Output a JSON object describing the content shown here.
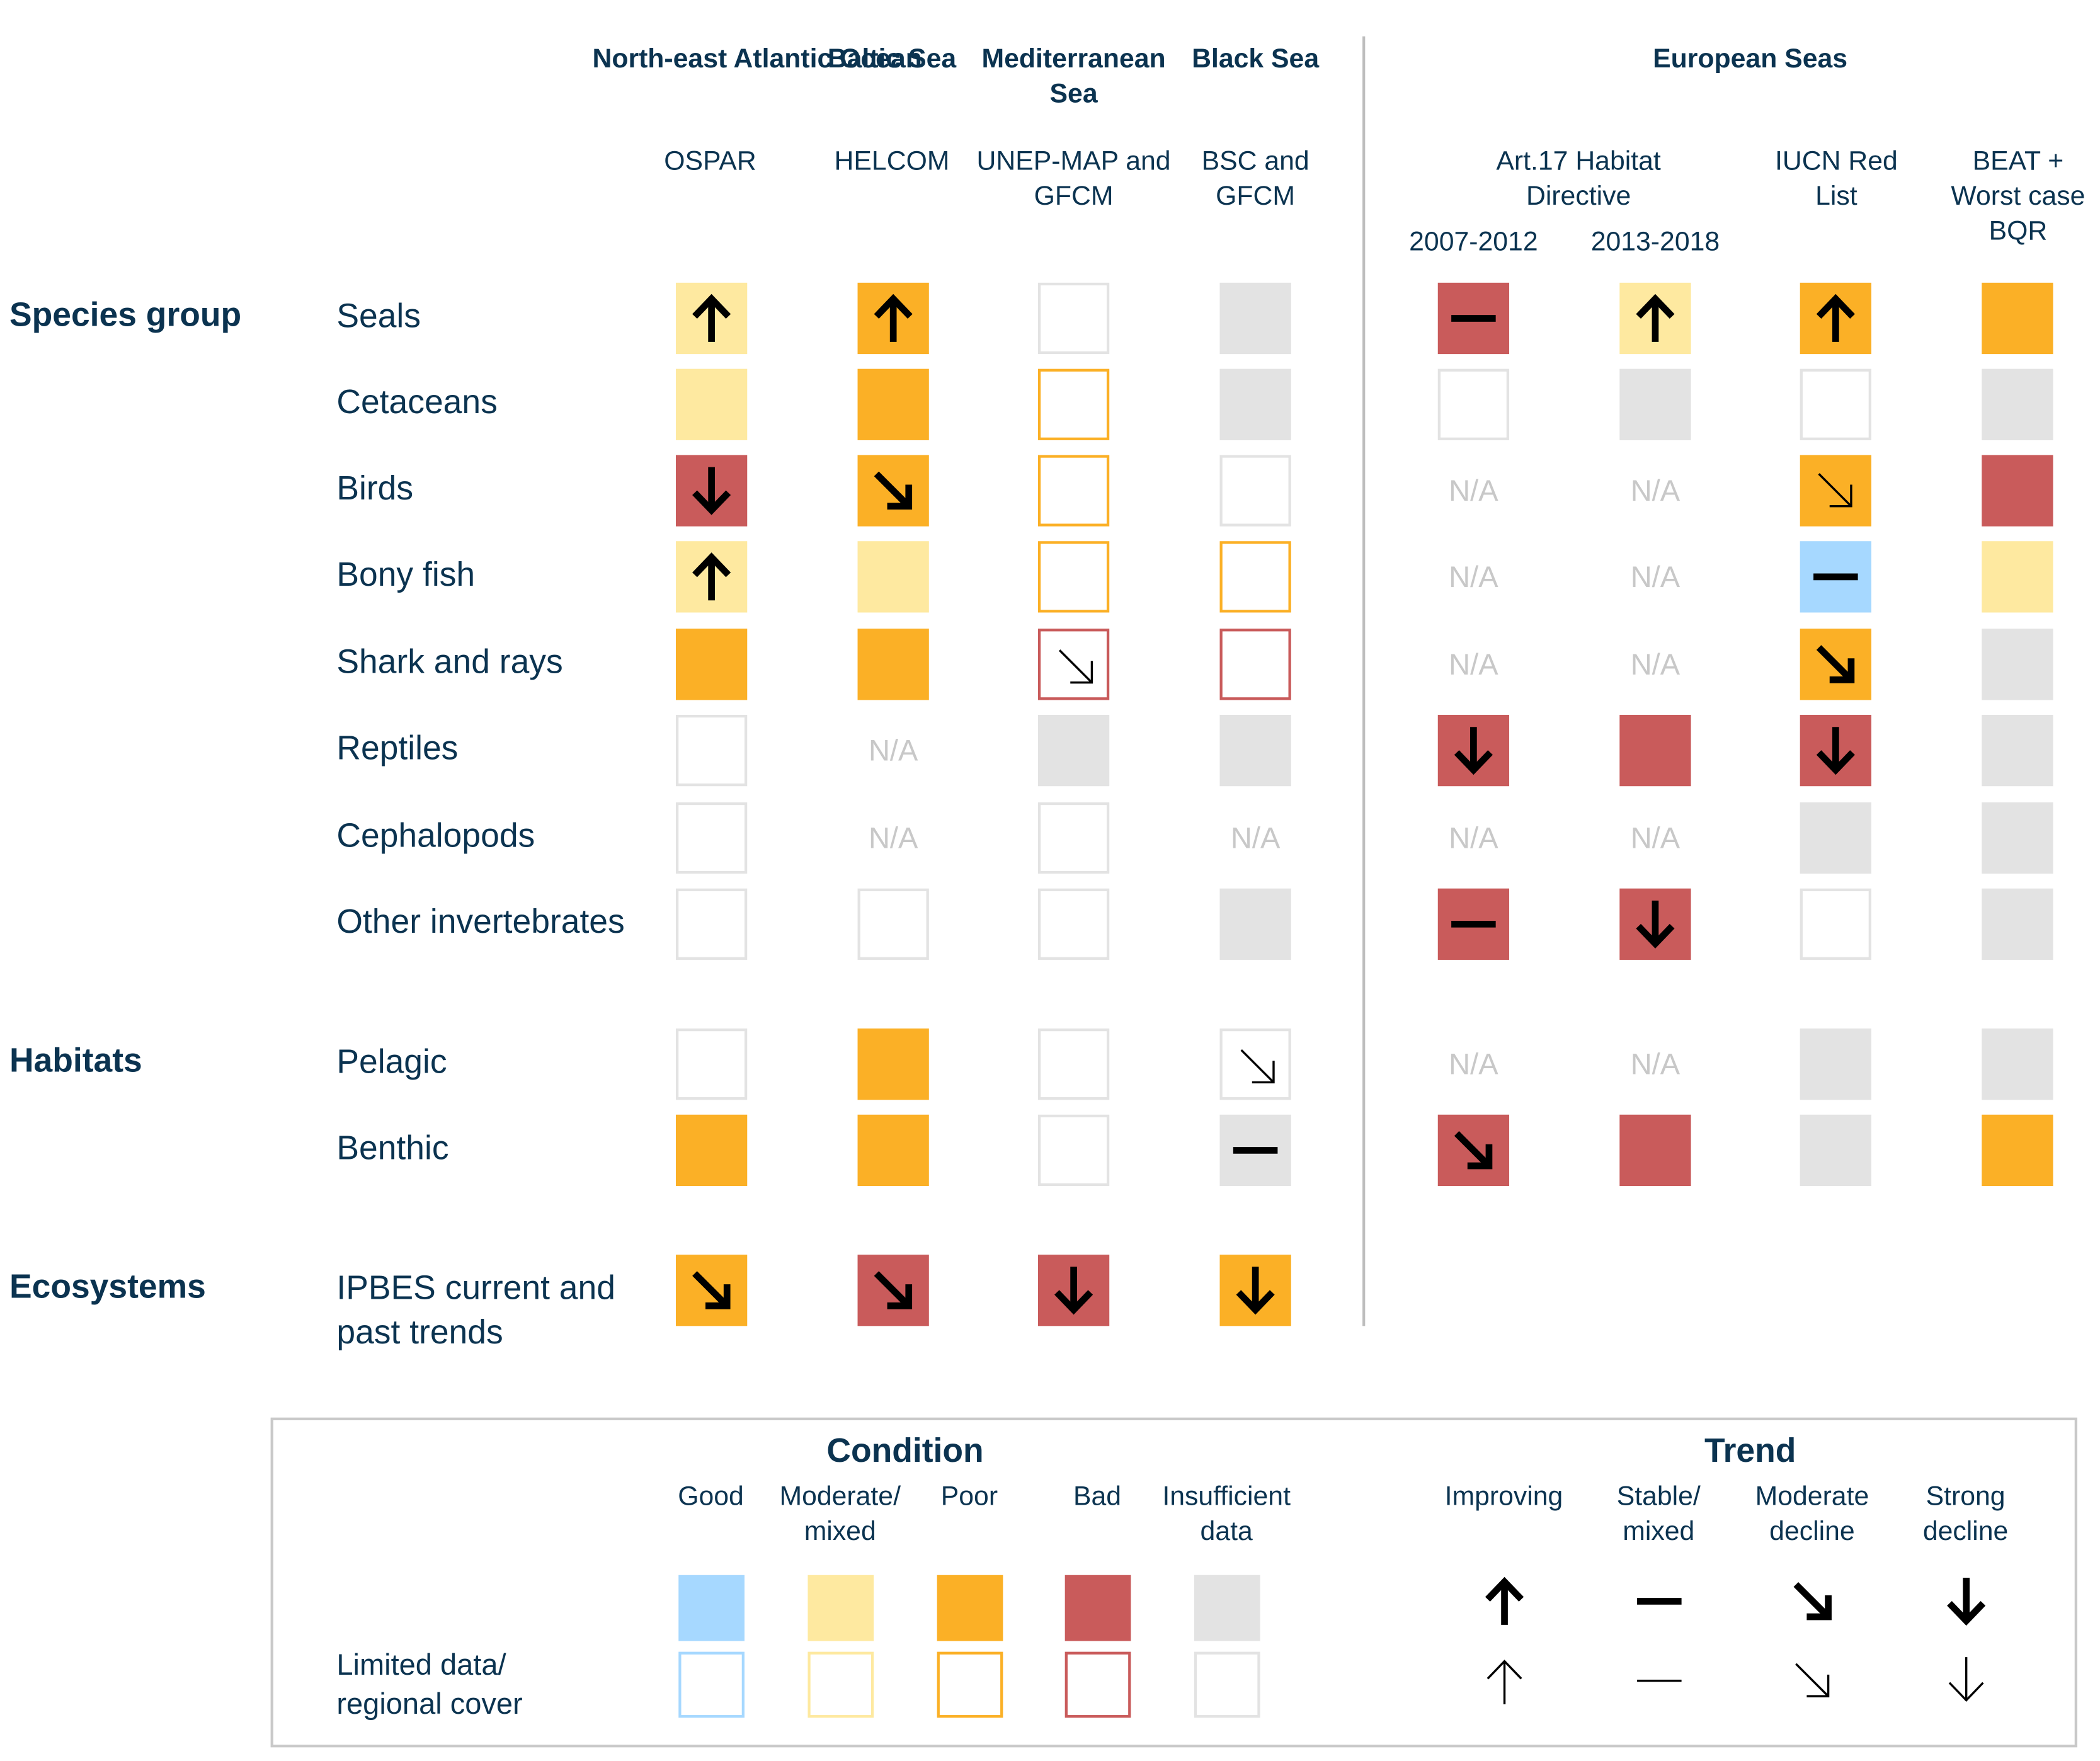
{
  "colors": {
    "good": "#a6d8ff",
    "moderate": "#fee9a0",
    "poor": "#fbb026",
    "bad": "#c95b5b",
    "insufficient": "#e3e3e3",
    "text": "#0b3350"
  },
  "regions": [
    {
      "name": "North-east Atlantic Ocean",
      "org": "OSPAR"
    },
    {
      "name": "Baltic Sea",
      "org": "HELCOM"
    },
    {
      "name": "Mediterranean Sea",
      "org": "UNEP-MAP and GFCM"
    },
    {
      "name": "Black Sea",
      "org": "BSC and GFCM"
    }
  ],
  "european_seas": {
    "title": "European Seas",
    "art17_label": "Art.17 Habitat Directive",
    "periods": [
      "2007-2012",
      "2013-2018"
    ],
    "iucn_label": "IUCN Red List",
    "beat_label": "BEAT + Worst case BQR"
  },
  "groups": [
    {
      "label": "Species group",
      "rows": [
        {
          "label": "Seals",
          "cells": [
            {
              "c": "moderate",
              "t": "up",
              "w": "bold"
            },
            {
              "c": "poor",
              "t": "up",
              "w": "bold"
            },
            {
              "c": "insufficient",
              "lim": true
            },
            {
              "c": "insufficient"
            },
            {
              "c": "bad",
              "t": "stable",
              "w": "bold"
            },
            {
              "c": "moderate",
              "t": "up",
              "w": "bold"
            },
            {
              "c": "poor",
              "t": "up",
              "w": "bold"
            },
            {
              "c": "poor"
            }
          ]
        },
        {
          "label": "Cetaceans",
          "cells": [
            {
              "c": "moderate"
            },
            {
              "c": "poor"
            },
            {
              "c": "poor",
              "lim": true
            },
            {
              "c": "insufficient"
            },
            {
              "c": "insufficient",
              "lim": true
            },
            {
              "c": "insufficient"
            },
            {
              "c": "insufficient",
              "lim": true
            },
            {
              "c": "insufficient"
            }
          ]
        },
        {
          "label": "Birds",
          "cells": [
            {
              "c": "bad",
              "t": "down",
              "w": "bold"
            },
            {
              "c": "poor",
              "t": "moddown",
              "w": "bold"
            },
            {
              "c": "poor",
              "lim": true
            },
            {
              "c": "insufficient",
              "lim": true
            },
            {
              "na": "N/A"
            },
            {
              "na": "N/A"
            },
            {
              "c": "poor",
              "t": "moddown",
              "w": "thin"
            },
            {
              "c": "bad"
            }
          ]
        },
        {
          "label": "Bony fish",
          "cells": [
            {
              "c": "moderate",
              "t": "up",
              "w": "bold"
            },
            {
              "c": "moderate"
            },
            {
              "c": "poor",
              "lim": true
            },
            {
              "c": "poor",
              "lim": true
            },
            {
              "na": "N/A"
            },
            {
              "na": "N/A"
            },
            {
              "c": "good",
              "t": "stable",
              "w": "bold"
            },
            {
              "c": "moderate"
            }
          ]
        },
        {
          "label": "Shark and rays",
          "cells": [
            {
              "c": "poor"
            },
            {
              "c": "poor"
            },
            {
              "c": "bad",
              "lim": true,
              "t": "moddown",
              "w": "thin"
            },
            {
              "c": "bad",
              "lim": true
            },
            {
              "na": "N/A"
            },
            {
              "na": "N/A"
            },
            {
              "c": "poor",
              "t": "moddown",
              "w": "bold"
            },
            {
              "c": "insufficient"
            }
          ]
        },
        {
          "label": "Reptiles",
          "cells": [
            {
              "c": "insufficient",
              "lim": true
            },
            {
              "na": "N/A"
            },
            {
              "c": "insufficient"
            },
            {
              "c": "insufficient"
            },
            {
              "c": "bad",
              "t": "down",
              "w": "bold"
            },
            {
              "c": "bad"
            },
            {
              "c": "bad",
              "t": "down",
              "w": "bold"
            },
            {
              "c": "insufficient"
            }
          ]
        },
        {
          "label": "Cephalopods",
          "cells": [
            {
              "c": "insufficient",
              "lim": true
            },
            {
              "na": "N/A"
            },
            {
              "c": "insufficient",
              "lim": true
            },
            {
              "na": "N/A"
            },
            {
              "na": "N/A"
            },
            {
              "na": "N/A"
            },
            {
              "c": "insufficient"
            },
            {
              "c": "insufficient"
            }
          ]
        },
        {
          "label": "Other invertebrates",
          "cells": [
            {
              "c": "insufficient",
              "lim": true
            },
            {
              "c": "insufficient",
              "lim": true
            },
            {
              "c": "insufficient",
              "lim": true
            },
            {
              "c": "insufficient"
            },
            {
              "c": "bad",
              "t": "stable",
              "w": "bold"
            },
            {
              "c": "bad",
              "t": "down",
              "w": "bold"
            },
            {
              "c": "insufficient",
              "lim": true
            },
            {
              "c": "insufficient"
            }
          ]
        }
      ]
    },
    {
      "label": "Habitats",
      "rows": [
        {
          "label": "Pelagic",
          "cells": [
            {
              "c": "insufficient",
              "lim": true
            },
            {
              "c": "poor"
            },
            {
              "c": "insufficient",
              "lim": true
            },
            {
              "c": "insufficient",
              "lim": true,
              "t": "moddown",
              "w": "thin"
            },
            {
              "na": "N/A"
            },
            {
              "na": "N/A"
            },
            {
              "c": "insufficient"
            },
            {
              "c": "insufficient"
            }
          ]
        },
        {
          "label": "Benthic",
          "cells": [
            {
              "c": "poor"
            },
            {
              "c": "poor"
            },
            {
              "c": "insufficient",
              "lim": true
            },
            {
              "c": "insufficient",
              "t": "stable",
              "w": "bold"
            },
            {
              "c": "bad",
              "t": "moddown",
              "w": "bold"
            },
            {
              "c": "bad"
            },
            {
              "c": "insufficient"
            },
            {
              "c": "poor"
            }
          ]
        }
      ]
    },
    {
      "label": "Ecosystems",
      "rows": [
        {
          "label": "IPBES current and past trends",
          "cells": [
            {
              "c": "poor",
              "t": "moddown",
              "w": "bold"
            },
            {
              "c": "bad",
              "t": "moddown",
              "w": "bold"
            },
            {
              "c": "bad",
              "t": "down",
              "w": "bold"
            },
            {
              "c": "poor",
              "t": "down",
              "w": "bold"
            }
          ]
        }
      ]
    }
  ],
  "legend": {
    "condition_title": "Condition",
    "trend_title": "Trend",
    "conditions": [
      {
        "key": "good",
        "label": "Good"
      },
      {
        "key": "moderate",
        "label": "Moderate/ mixed"
      },
      {
        "key": "poor",
        "label": "Poor"
      },
      {
        "key": "bad",
        "label": "Bad"
      },
      {
        "key": "insufficient",
        "label": "Insufficient data"
      }
    ],
    "trends": [
      {
        "key": "up",
        "label": "Improving"
      },
      {
        "key": "stable",
        "label": "Stable/ mixed"
      },
      {
        "key": "moddown",
        "label": "Moderate decline"
      },
      {
        "key": "down",
        "label": "Strong decline"
      }
    ],
    "limited_label": "Limited data/ regional cover"
  }
}
